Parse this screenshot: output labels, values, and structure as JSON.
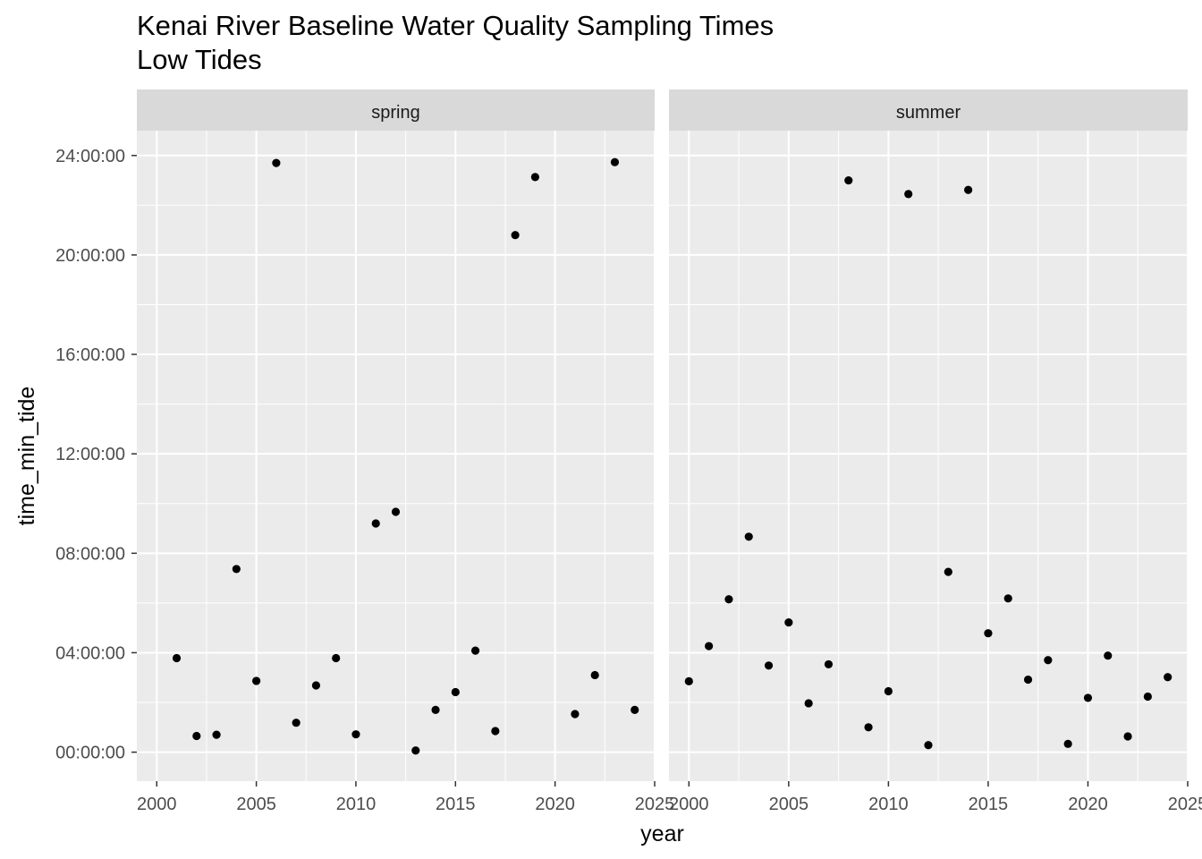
{
  "chart_data": {
    "type": "scatter",
    "title": "Kenai River Baseline Water Quality Sampling Times",
    "subtitle": "Low Tides",
    "xlabel": "year",
    "ylabel": "time_min_tide",
    "xlim": [
      1999,
      2025
    ],
    "ylim": [
      "-01:10:00",
      "25:00:00"
    ],
    "x_ticks": [
      "2000",
      "2005",
      "2010",
      "2015",
      "2020",
      "2025"
    ],
    "y_ticks": [
      "00:00:00",
      "04:00:00",
      "08:00:00",
      "12:00:00",
      "16:00:00",
      "20:00:00",
      "24:00:00"
    ],
    "grid": true,
    "legend": "none",
    "point_color": "#000000",
    "panel_background": "#ebebeb",
    "strip_background": "#d9d9d9",
    "facets": [
      {
        "label": "spring",
        "points": [
          {
            "x": 2001,
            "y": "03:47:00"
          },
          {
            "x": 2002,
            "y": "00:39:00"
          },
          {
            "x": 2003,
            "y": "00:42:00"
          },
          {
            "x": 2004,
            "y": "07:22:00"
          },
          {
            "x": 2005,
            "y": "02:52:00"
          },
          {
            "x": 2006,
            "y": "23:42:00"
          },
          {
            "x": 2007,
            "y": "01:11:00"
          },
          {
            "x": 2008,
            "y": "02:41:00"
          },
          {
            "x": 2009,
            "y": "03:47:00"
          },
          {
            "x": 2010,
            "y": "00:43:00"
          },
          {
            "x": 2011,
            "y": "09:12:00"
          },
          {
            "x": 2012,
            "y": "09:40:00"
          },
          {
            "x": 2013,
            "y": "00:04:00"
          },
          {
            "x": 2014,
            "y": "01:42:00"
          },
          {
            "x": 2015,
            "y": "02:25:00"
          },
          {
            "x": 2016,
            "y": "04:05:00"
          },
          {
            "x": 2017,
            "y": "00:51:00"
          },
          {
            "x": 2018,
            "y": "20:48:00"
          },
          {
            "x": 2019,
            "y": "23:08:00"
          },
          {
            "x": 2021,
            "y": "01:32:00"
          },
          {
            "x": 2022,
            "y": "03:06:00"
          },
          {
            "x": 2023,
            "y": "23:44:00"
          },
          {
            "x": 2024,
            "y": "01:42:00"
          }
        ]
      },
      {
        "label": "summer",
        "points": [
          {
            "x": 2000,
            "y": "02:51:00"
          },
          {
            "x": 2001,
            "y": "04:16:00"
          },
          {
            "x": 2002,
            "y": "06:09:00"
          },
          {
            "x": 2003,
            "y": "08:40:00"
          },
          {
            "x": 2004,
            "y": "03:29:00"
          },
          {
            "x": 2005,
            "y": "05:13:00"
          },
          {
            "x": 2006,
            "y": "01:58:00"
          },
          {
            "x": 2007,
            "y": "03:32:00"
          },
          {
            "x": 2008,
            "y": "23:00:00"
          },
          {
            "x": 2009,
            "y": "01:00:00"
          },
          {
            "x": 2010,
            "y": "02:27:00"
          },
          {
            "x": 2011,
            "y": "22:27:00"
          },
          {
            "x": 2012,
            "y": "00:17:00"
          },
          {
            "x": 2013,
            "y": "07:15:00"
          },
          {
            "x": 2014,
            "y": "22:37:00"
          },
          {
            "x": 2015,
            "y": "04:47:00"
          },
          {
            "x": 2016,
            "y": "06:11:00"
          },
          {
            "x": 2017,
            "y": "02:55:00"
          },
          {
            "x": 2018,
            "y": "03:42:00"
          },
          {
            "x": 2019,
            "y": "00:20:00"
          },
          {
            "x": 2020,
            "y": "02:11:00"
          },
          {
            "x": 2021,
            "y": "03:53:00"
          },
          {
            "x": 2022,
            "y": "00:38:00"
          },
          {
            "x": 2023,
            "y": "02:14:00"
          },
          {
            "x": 2024,
            "y": "03:01:00"
          }
        ]
      }
    ]
  }
}
